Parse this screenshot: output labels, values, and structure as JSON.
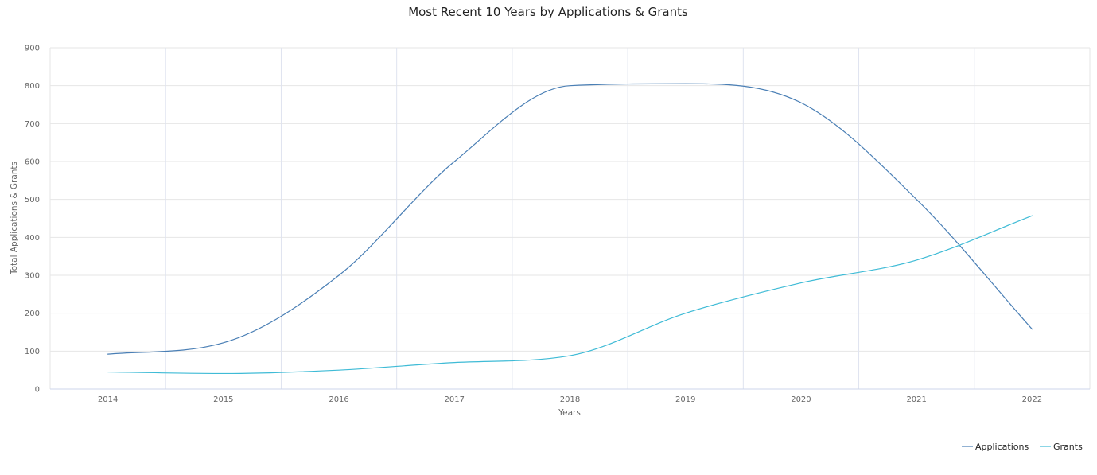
{
  "chart_data": {
    "type": "line",
    "title": "Most Recent 10 Years by Applications & Grants",
    "xlabel": "Years",
    "ylabel": "Total Applications & Grants",
    "categories": [
      "2014",
      "2015",
      "2016",
      "2017",
      "2018",
      "2019",
      "2020",
      "2021",
      "2022"
    ],
    "ylim": [
      0,
      900
    ],
    "yticks": [
      0,
      100,
      200,
      300,
      400,
      500,
      600,
      700,
      800,
      900
    ],
    "series": [
      {
        "name": "Applications",
        "color": "#4a7fb5",
        "values": [
          92,
          122,
          300,
          600,
          800,
          805,
          755,
          500,
          158
        ]
      },
      {
        "name": "Grants",
        "color": "#3fbbd6",
        "values": [
          45,
          41,
          50,
          70,
          88,
          200,
          280,
          340,
          457
        ]
      }
    ],
    "legend_position": "bottom-right",
    "grid": true
  }
}
